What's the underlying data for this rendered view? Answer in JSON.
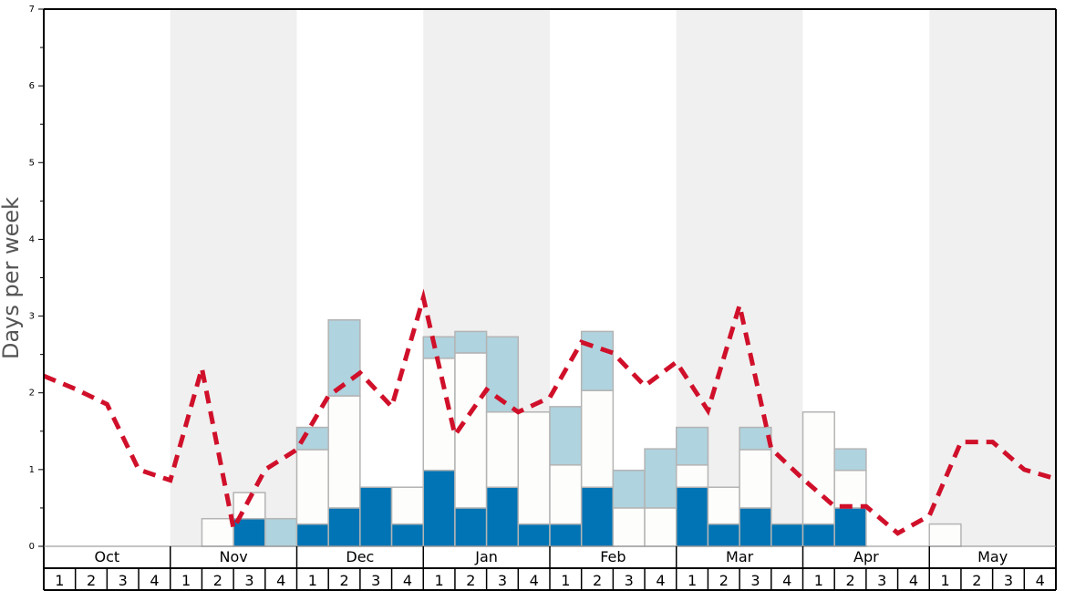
{
  "chart_data": {
    "type": "bar",
    "stacked": true,
    "ylabel": "Days per week",
    "ylim": [
      0,
      7
    ],
    "yticks": [
      "0",
      "1",
      "2",
      "3",
      "4",
      "5",
      "6",
      "7"
    ],
    "months": [
      "Oct",
      "Nov",
      "Dec",
      "Jan",
      "Feb",
      "Mar",
      "Apr",
      "May"
    ],
    "weeks": [
      "1",
      "2",
      "3",
      "4"
    ],
    "shaded_months": [
      false,
      true,
      false,
      true,
      false,
      true,
      false,
      true
    ],
    "colors": {
      "dark": "#0074b4",
      "white": "#fdfdfb",
      "light": "#afd3df",
      "line": "#d0102a",
      "shade": "#f0f0f0"
    },
    "series": [
      {
        "key": "dark",
        "values": [
          0,
          0,
          0,
          0,
          0,
          0,
          0.36,
          0,
          0.29,
          0.5,
          0.77,
          0.29,
          0.99,
          0.5,
          0.77,
          0.29,
          0.29,
          0.77,
          0,
          0,
          0.77,
          0.29,
          0.5,
          0.29,
          0.29,
          0.5,
          0,
          0,
          0,
          0,
          0,
          0
        ]
      },
      {
        "key": "white",
        "values": [
          0,
          0,
          0,
          0,
          0,
          0.36,
          0.34,
          0,
          0.97,
          1.46,
          0,
          0.48,
          1.46,
          2.02,
          0.98,
          1.46,
          0.77,
          1.26,
          0.5,
          0.5,
          0.29,
          0.48,
          0.76,
          0,
          1.46,
          0.49,
          0,
          0,
          0.29,
          0,
          0,
          0
        ]
      },
      {
        "key": "light",
        "values": [
          0,
          0,
          0,
          0,
          0,
          0,
          0,
          0.36,
          0.29,
          0.99,
          0,
          0,
          0.28,
          0.28,
          0.98,
          0,
          0.76,
          0.77,
          0.49,
          0.77,
          0.49,
          0,
          0.29,
          0,
          0,
          0.28,
          0,
          0,
          0,
          0,
          0,
          0
        ]
      }
    ],
    "line": {
      "style": "dashed",
      "values": [
        2.22,
        2.05,
        1.85,
        1.0,
        0.86,
        2.32,
        0.23,
        1.0,
        1.26,
        1.96,
        2.26,
        1.82,
        3.24,
        1.45,
        2.04,
        1.75,
        1.94,
        2.66,
        2.52,
        2.09,
        2.4,
        1.77,
        3.14,
        1.27,
        0.88,
        0.52,
        0.52,
        0.17,
        0.4,
        1.36,
        1.36,
        1.0,
        0.88
      ]
    },
    "grid": false,
    "legend": "none"
  }
}
